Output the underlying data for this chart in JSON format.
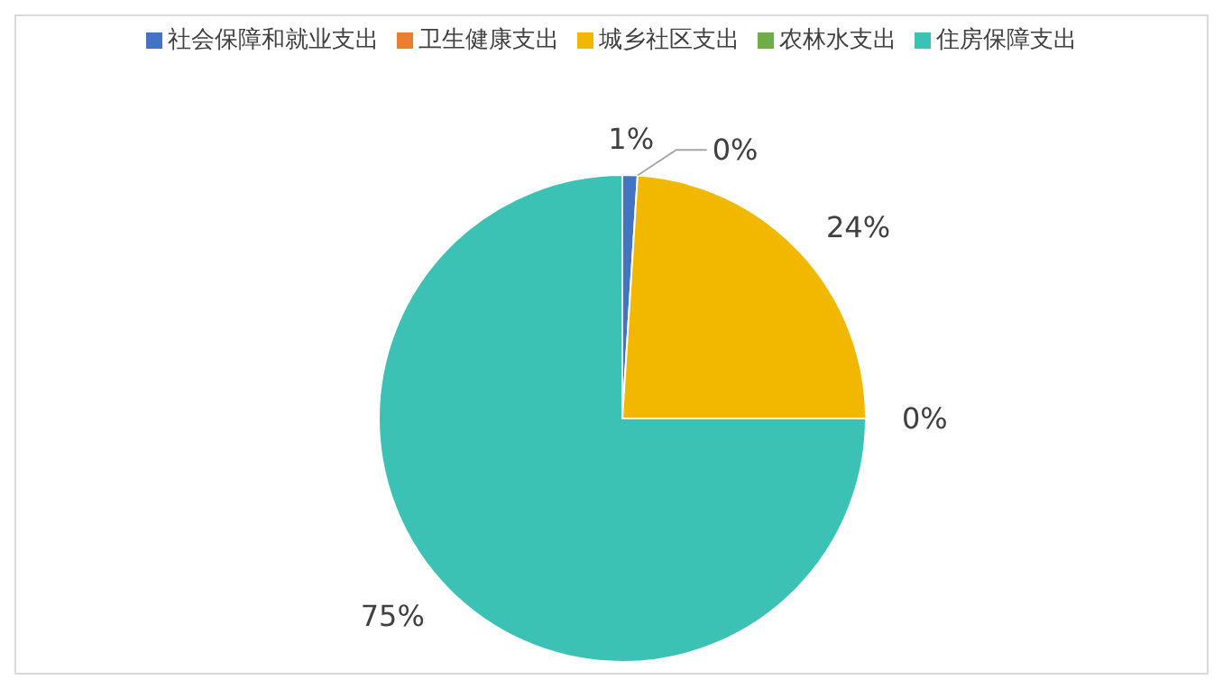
{
  "chart_data": {
    "type": "pie",
    "categories": [
      "社会保障和就业支出",
      "卫生健康支出",
      "城乡社区支出",
      "农林水支出",
      "住房保障支出"
    ],
    "values": [
      1,
      0,
      24,
      0,
      75
    ],
    "colors": [
      "#4472c4",
      "#ed7d31",
      "#f2b800",
      "#70ad47",
      "#3cc2b4"
    ],
    "value_labels": [
      "1%",
      "0%",
      "24%",
      "0%",
      "75%"
    ],
    "legend": "top"
  }
}
